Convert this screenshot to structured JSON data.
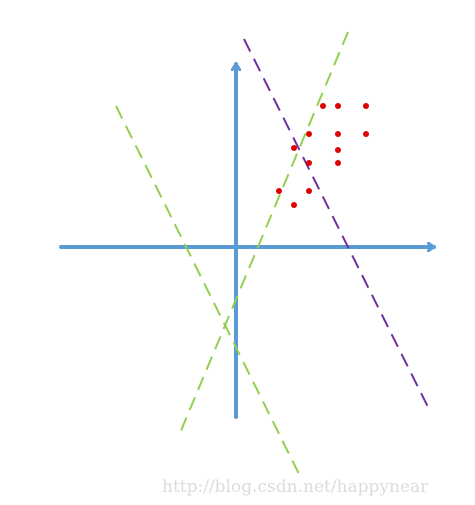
{
  "diagram": {
    "colors": {
      "axes": "#5b9bd5",
      "points": "#e00000",
      "boundary_purple": "#7030a0",
      "boundary_green": "#92d050",
      "watermark": "#dcdcdc"
    },
    "watermark": "http://blog.csdn.net/happynear"
  }
}
